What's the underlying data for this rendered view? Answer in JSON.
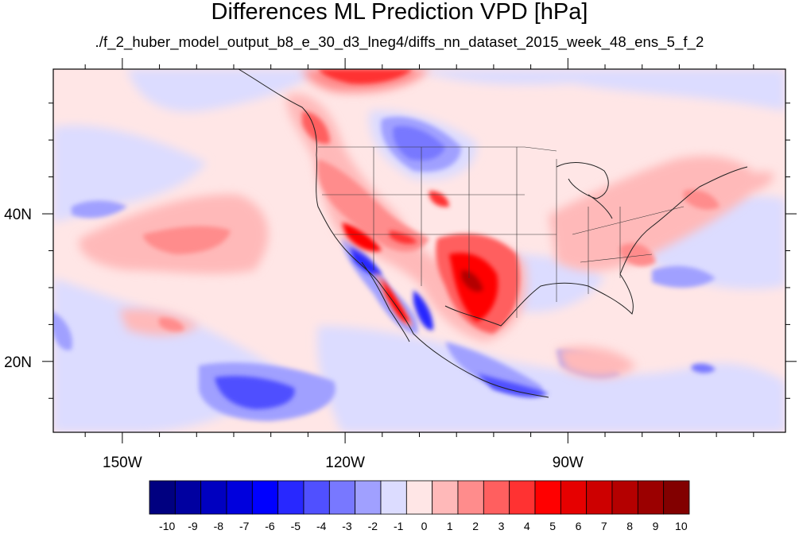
{
  "title": "Differences ML Prediction VPD [hPa]",
  "subtitle": "./f_2_huber_model_output_b8_e_30_d3_lneg4/diffs_nn_dataset_2015_week_48_ens_5_f_2",
  "axes": {
    "lat_labels": [
      "40N",
      "20N"
    ],
    "lon_labels": [
      "150W",
      "120W",
      "90W"
    ],
    "lat_values": [
      40,
      20
    ],
    "lon_values": [
      -150,
      -120,
      -90
    ],
    "lon_range": [
      -159.3,
      -60.7
    ],
    "lat_range": [
      10.4,
      59.6
    ]
  },
  "colorbar": {
    "labels": [
      "-10",
      "-9",
      "-8",
      "-7",
      "-6",
      "-5",
      "-4",
      "-3",
      "-2",
      "-1",
      "0",
      "1",
      "2",
      "3",
      "4",
      "5",
      "6",
      "7",
      "8",
      "9",
      "10"
    ],
    "colors": [
      "#000080",
      "#0000a0",
      "#0000c0",
      "#0000dd",
      "#0000ff",
      "#2828ff",
      "#5050ff",
      "#7878ff",
      "#a0a0ff",
      "#dcdcff",
      "#ffe6e6",
      "#ffb9b9",
      "#ff8c8c",
      "#ff5f5f",
      "#ff3232",
      "#ff0000",
      "#e60000",
      "#cd0000",
      "#b40000",
      "#9b0000",
      "#820000"
    ]
  },
  "colors": {
    "background_field": "#ffe6e6",
    "coast": "#222222"
  }
}
